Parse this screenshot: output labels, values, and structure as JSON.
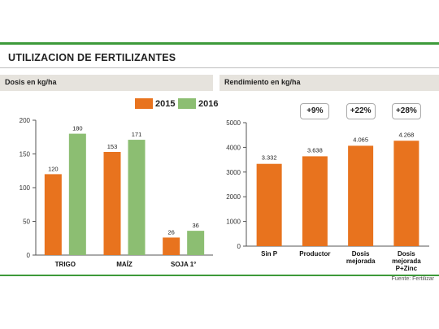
{
  "header": {
    "title": "UTILIZACION DE FERTILIZANTES"
  },
  "source": "Fuente: Fertilizar",
  "colors": {
    "orange": "#e8731e",
    "green": "#8cbe72",
    "accent": "#3d9a3a"
  },
  "chart_data": [
    {
      "type": "bar",
      "title": "Dosis en kg/ha",
      "categories": [
        "TRIGO",
        "MAÍZ",
        "SOJA 1°"
      ],
      "series": [
        {
          "name": "2015",
          "values": [
            120,
            153,
            26
          ],
          "color": "#e8731e"
        },
        {
          "name": "2016",
          "values": [
            180,
            171,
            36
          ],
          "color": "#8cbe72"
        }
      ],
      "ylim": [
        0,
        200
      ],
      "yticks": [
        0,
        50,
        100,
        150,
        200
      ],
      "grid": false,
      "legend": "top-right"
    },
    {
      "type": "bar",
      "title": "Rendimiento en kg/ha",
      "categories": [
        "Sin P",
        "Productor",
        "Dosis mejorada",
        "Dosis mejorada P+Zinc"
      ],
      "values": [
        3332,
        3638,
        4065,
        4268
      ],
      "value_labels": [
        "3.332",
        "3.638",
        "4.065",
        "4.268"
      ],
      "badges": [
        "",
        "+9%",
        "+22%",
        "+28%"
      ],
      "ylim": [
        0,
        5000
      ],
      "yticks": [
        0,
        1000,
        2000,
        3000,
        4000,
        5000
      ],
      "grid": false
    }
  ]
}
